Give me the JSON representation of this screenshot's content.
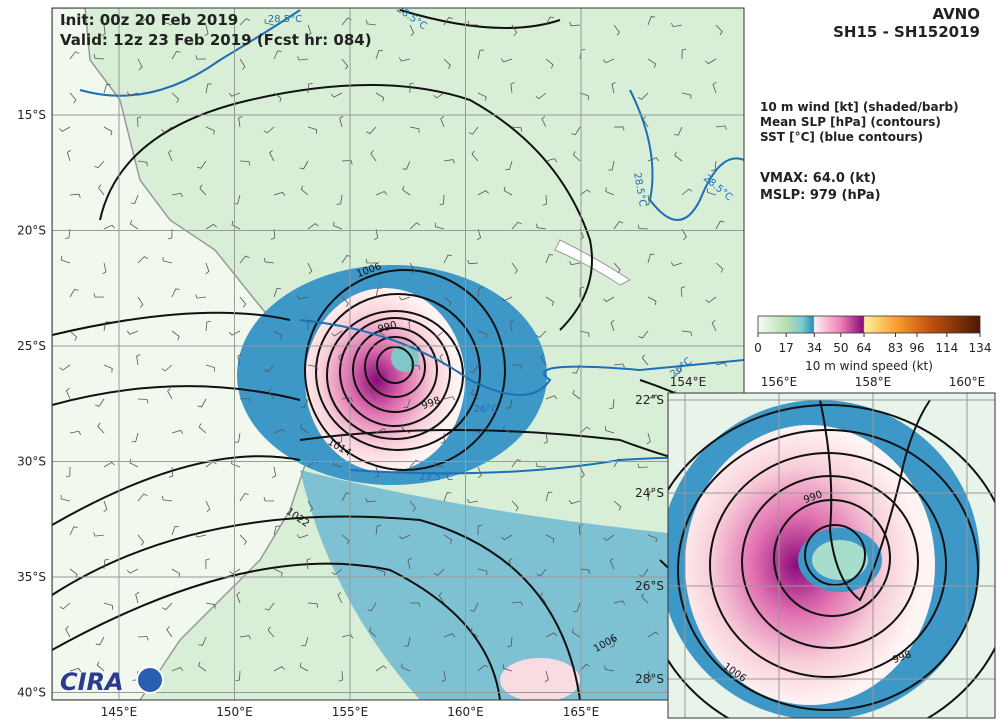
{
  "header": {
    "init": "Init:  00z 20 Feb 2019",
    "valid": "Valid: 12z 23 Feb 2019 (Fcst hr: 084)",
    "model": "AVNO",
    "storm": "SH15 - SH152019"
  },
  "legend": {
    "lines": [
      "10 m wind [kt] (shaded/barb)",
      "Mean SLP [hPa] (contours)",
      "SST [°C] (blue contours)"
    ],
    "vmax": "VMAX:  64.0 (kt)",
    "mslp": "MSLP:  979 (hPa)"
  },
  "colorbar": {
    "ticks": [
      0,
      17,
      34,
      50,
      64,
      83,
      96,
      114,
      134
    ],
    "label": "10 m wind speed (kt)"
  },
  "map": {
    "lat_ticks": [
      {
        "value": -15,
        "label": "15°S"
      },
      {
        "value": -20,
        "label": "20°S"
      },
      {
        "value": -25,
        "label": "25°S"
      },
      {
        "value": -30,
        "label": "30°S"
      },
      {
        "value": -35,
        "label": "35°S"
      },
      {
        "value": -40,
        "label": "40°S"
      }
    ],
    "lon_ticks": [
      {
        "value": 145,
        "label": "145°E"
      },
      {
        "value": 150,
        "label": "150°E"
      },
      {
        "value": 155,
        "label": "155°E"
      },
      {
        "value": 160,
        "label": "160°E"
      },
      {
        "value": 165,
        "label": "165°E"
      }
    ],
    "contour_labels": [
      "1006",
      "990",
      "998",
      "1014",
      "1022",
      "1006",
      "23.5°C",
      "26°C",
      "26°C",
      "28.5°C",
      "28.5°C",
      "28.5°C",
      "28.5°C"
    ],
    "logo": "CIRA"
  },
  "inset": {
    "lat_ticks": [
      {
        "value": -22,
        "label": "22°S"
      },
      {
        "value": -24,
        "label": "24°S"
      },
      {
        "value": -26,
        "label": "26°S"
      },
      {
        "value": -28,
        "label": "28°S"
      }
    ],
    "lon_ticks": [
      {
        "value": 154,
        "label": "154°E"
      },
      {
        "value": 156,
        "label": "156°E"
      },
      {
        "value": 158,
        "label": "158°E"
      },
      {
        "value": 160,
        "label": "160°E"
      }
    ],
    "contour_labels": [
      "990",
      "998",
      "1006"
    ]
  }
}
